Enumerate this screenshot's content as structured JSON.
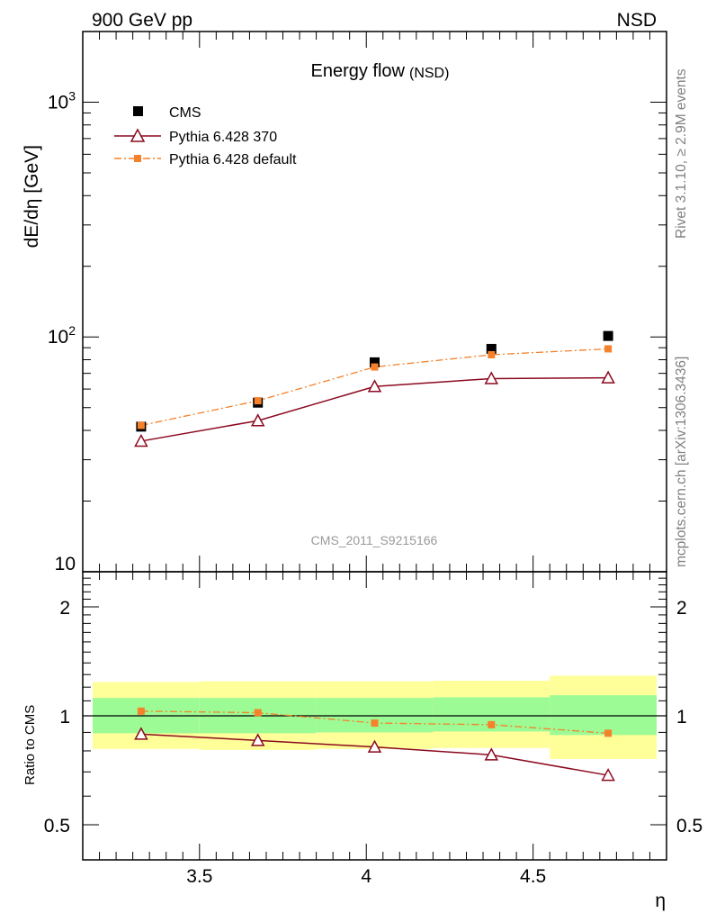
{
  "header": {
    "left": "900 GeV pp",
    "right": "NSD"
  },
  "side_labels": {
    "rivet": "Rivet 3.1.10, ≥ 2.9M events",
    "mcplots": "mcplots.cern.ch [arXiv:1306.3436]"
  },
  "colors": {
    "cms": "#000000",
    "pythia370": "#8b0a1f",
    "pythia_default": "#f5812b",
    "band_inner": "#9cfb95",
    "band_outer": "#ffff99",
    "watermark": "#999999"
  },
  "chart_data": [
    {
      "type": "scatter",
      "panel": "main",
      "title": "Energy flow",
      "title_suffix": "(NSD)",
      "ylabel": "dE/dη [GeV]",
      "yscale": "log",
      "xlim": [
        3.15,
        4.9
      ],
      "ylim": [
        10,
        2000
      ],
      "y_ticks": [
        {
          "value": 10,
          "label": "10"
        },
        {
          "value": 100,
          "label": "10",
          "exp": "2"
        },
        {
          "value": 1000,
          "label": "10",
          "exp": "3"
        }
      ],
      "watermark": "CMS_2011_S9215166",
      "legend_placement": "top-left",
      "series": [
        {
          "name": "CMS",
          "marker": "square",
          "x": [
            3.325,
            3.675,
            4.025,
            4.375,
            4.725
          ],
          "y": [
            41.5,
            52.5,
            78,
            89,
            101
          ]
        },
        {
          "name": "Pythia 6.428 370",
          "marker": "open-triangle",
          "line": "solid",
          "x": [
            3.325,
            3.675,
            4.025,
            4.375,
            4.725
          ],
          "y": [
            36,
            44,
            61.5,
            66.5,
            67
          ]
        },
        {
          "name": "Pythia 6.428 default",
          "marker": "small-square",
          "line": "dashdot",
          "x": [
            3.325,
            3.675,
            4.025,
            4.375,
            4.725
          ],
          "y": [
            42,
            53.5,
            74.5,
            84,
            89
          ]
        }
      ]
    },
    {
      "type": "line",
      "panel": "ratio",
      "ylabel": "Ratio to CMS",
      "xlabel": "η",
      "yscale": "log",
      "xlim": [
        3.15,
        4.9
      ],
      "ylim": [
        0.4,
        2.5
      ],
      "x_ticks": [
        {
          "value": 3.5,
          "label": "3.5"
        },
        {
          "value": 4,
          "label": "4"
        },
        {
          "value": 4.5,
          "label": "4.5"
        }
      ],
      "y_ticks": [
        {
          "value": 0.5,
          "label": "0.5"
        },
        {
          "value": 1,
          "label": "1"
        },
        {
          "value": 2,
          "label": "2"
        }
      ],
      "bands": [
        {
          "x_low": 3.15,
          "x_high": 3.5,
          "outer": [
            0.81,
            1.24
          ],
          "inner": [
            0.895,
            1.12
          ]
        },
        {
          "x_low": 3.5,
          "x_high": 3.85,
          "outer": [
            0.805,
            1.245
          ],
          "inner": [
            0.895,
            1.12
          ]
        },
        {
          "x_low": 3.85,
          "x_high": 4.2,
          "outer": [
            0.81,
            1.245
          ],
          "inner": [
            0.9,
            1.12
          ]
        },
        {
          "x_low": 4.2,
          "x_high": 4.55,
          "outer": [
            0.815,
            1.25
          ],
          "inner": [
            0.905,
            1.125
          ]
        },
        {
          "x_low": 4.55,
          "x_high": 4.9,
          "outer": [
            0.76,
            1.29
          ],
          "inner": [
            0.885,
            1.14
          ]
        }
      ],
      "series": [
        {
          "name": "Pythia 6.428 370",
          "x": [
            3.325,
            3.675,
            4.025,
            4.375,
            4.725
          ],
          "y": [
            0.89,
            0.855,
            0.82,
            0.78,
            0.685
          ]
        },
        {
          "name": "Pythia 6.428 default",
          "x": [
            3.325,
            3.675,
            4.025,
            4.375,
            4.725
          ],
          "y": [
            1.03,
            1.02,
            0.955,
            0.945,
            0.895
          ]
        }
      ]
    }
  ]
}
